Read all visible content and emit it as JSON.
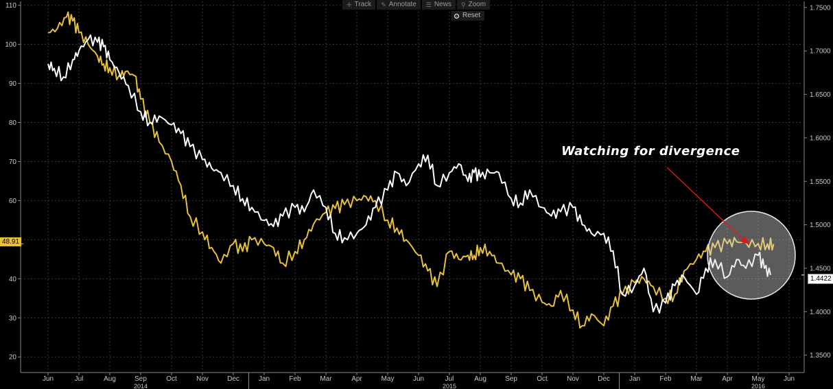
{
  "toolbar": {
    "track": "Track",
    "annotate": "Annotate",
    "news": "News",
    "zoom": "Zoom",
    "reset": "Reset"
  },
  "annotation": {
    "text": "Watching for divergence",
    "highlight_color": "#d8d8d8",
    "arrow_color": "#e0181b"
  },
  "tags": {
    "left_last_value": "48.91",
    "right_last_value": "1.4422"
  },
  "colors": {
    "background": "#000000",
    "grid": "#3a3a3a",
    "gold_series": "#e8c13c",
    "white_series": "#ffffff"
  },
  "chart_data": {
    "type": "line",
    "title": "",
    "legend": "none",
    "grid": true,
    "x_months": [
      "Jun",
      "Jul",
      "Aug",
      "Sep",
      "Oct",
      "Nov",
      "Dec",
      "Jan",
      "Feb",
      "Mar",
      "Apr",
      "May",
      "Jun",
      "Jul",
      "Aug",
      "Sep",
      "Oct",
      "Nov",
      "Dec",
      "Jan",
      "Feb",
      "Mar",
      "Apr",
      "May",
      "Jun"
    ],
    "x_years": [
      {
        "label": "2014",
        "month_index": 3
      },
      {
        "label": "2015",
        "month_index": 13
      },
      {
        "label": "2016",
        "month_index": 23
      }
    ],
    "left_axis": {
      "ylim": [
        16,
        111
      ],
      "ticks": [
        20,
        30,
        40,
        50,
        60,
        70,
        80,
        90,
        100,
        110
      ]
    },
    "right_axis": {
      "ylim": [
        1.33,
        1.757
      ],
      "ticks": [
        "1.3500",
        "1.4000",
        "1.4500",
        "1.5000",
        "1.5500",
        "1.6000",
        "1.6500",
        "1.7000",
        "1.7500"
      ]
    },
    "series": [
      {
        "axis": "left",
        "color": "#e8c13c",
        "x": [
          0,
          0.3,
          0.6,
          0.8,
          1.0,
          1.3,
          1.6,
          1.8,
          2.0,
          2.3,
          2.5,
          2.8,
          3.0,
          3.3,
          3.6,
          4.0,
          4.3,
          4.6,
          5.0,
          5.3,
          5.6,
          6.0,
          6.3,
          6.6,
          7.0,
          7.3,
          7.6,
          8.0,
          8.3,
          8.6,
          9.0,
          9.3,
          9.6,
          10.0,
          10.3,
          10.6,
          11.0,
          11.3,
          11.6,
          12.0,
          12.3,
          12.6,
          13.0,
          13.3,
          13.6,
          13.8,
          14.0,
          14.3,
          14.6,
          15.0,
          15.3,
          15.6,
          16.0,
          16.3,
          16.6,
          17.0,
          17.3,
          17.6,
          18.0,
          18.3,
          18.6,
          19.0,
          19.3,
          19.6,
          20.0,
          20.3,
          20.6,
          21.0,
          21.3,
          21.6,
          22.0,
          22.3,
          22.6,
          23.0,
          23.3,
          23.5
        ],
        "values": [
          103,
          104,
          107,
          106,
          103,
          100,
          97,
          95,
          94,
          92,
          93,
          92,
          86,
          80,
          75,
          70,
          64,
          56,
          52,
          48,
          44,
          49,
          47,
          50,
          49,
          48,
          44,
          47,
          50,
          54,
          57,
          58,
          59,
          60,
          61,
          60,
          55,
          53,
          50,
          46,
          42,
          38,
          47,
          45,
          46,
          46,
          48,
          47,
          44,
          41,
          40,
          37,
          34,
          33,
          37,
          32,
          28,
          31,
          28,
          33,
          36,
          39,
          40,
          38,
          35,
          36,
          42,
          45,
          47,
          48,
          49,
          49.5,
          49.2,
          49,
          48.9,
          48.91
        ]
      },
      {
        "axis": "right",
        "color": "#ffffff",
        "x": [
          0,
          0.2,
          0.5,
          0.8,
          1.0,
          1.3,
          1.6,
          1.8,
          2.0,
          2.3,
          2.6,
          3.0,
          3.3,
          3.6,
          4.0,
          4.3,
          4.6,
          5.0,
          5.3,
          5.6,
          6.0,
          6.3,
          6.6,
          7.0,
          7.3,
          7.6,
          8.0,
          8.3,
          8.6,
          9.0,
          9.3,
          9.6,
          10.0,
          10.3,
          10.6,
          11.0,
          11.3,
          11.6,
          12.0,
          12.3,
          12.6,
          13.0,
          13.3,
          13.6,
          13.8,
          14.0,
          14.3,
          14.6,
          15.0,
          15.3,
          15.6,
          16.0,
          16.3,
          16.6,
          17.0,
          17.3,
          17.6,
          18.0,
          18.3,
          18.6,
          19.0,
          19.3,
          19.6,
          20.0,
          20.3,
          20.6,
          21.0,
          21.3,
          21.6,
          22.0,
          22.3,
          22.6,
          23.0,
          23.2,
          23.4
        ],
        "values": [
          1.685,
          1.68,
          1.67,
          1.69,
          1.7,
          1.713,
          1.71,
          1.705,
          1.69,
          1.675,
          1.66,
          1.63,
          1.618,
          1.625,
          1.615,
          1.605,
          1.59,
          1.575,
          1.565,
          1.56,
          1.545,
          1.53,
          1.52,
          1.505,
          1.498,
          1.51,
          1.52,
          1.515,
          1.54,
          1.52,
          1.49,
          1.485,
          1.49,
          1.5,
          1.52,
          1.54,
          1.56,
          1.545,
          1.57,
          1.58,
          1.545,
          1.56,
          1.57,
          1.55,
          1.56,
          1.555,
          1.56,
          1.56,
          1.53,
          1.525,
          1.54,
          1.52,
          1.51,
          1.515,
          1.52,
          1.5,
          1.49,
          1.49,
          1.47,
          1.42,
          1.43,
          1.45,
          1.4,
          1.41,
          1.43,
          1.44,
          1.42,
          1.45,
          1.46,
          1.44,
          1.46,
          1.45,
          1.465,
          1.45,
          1.4422
        ]
      }
    ]
  }
}
